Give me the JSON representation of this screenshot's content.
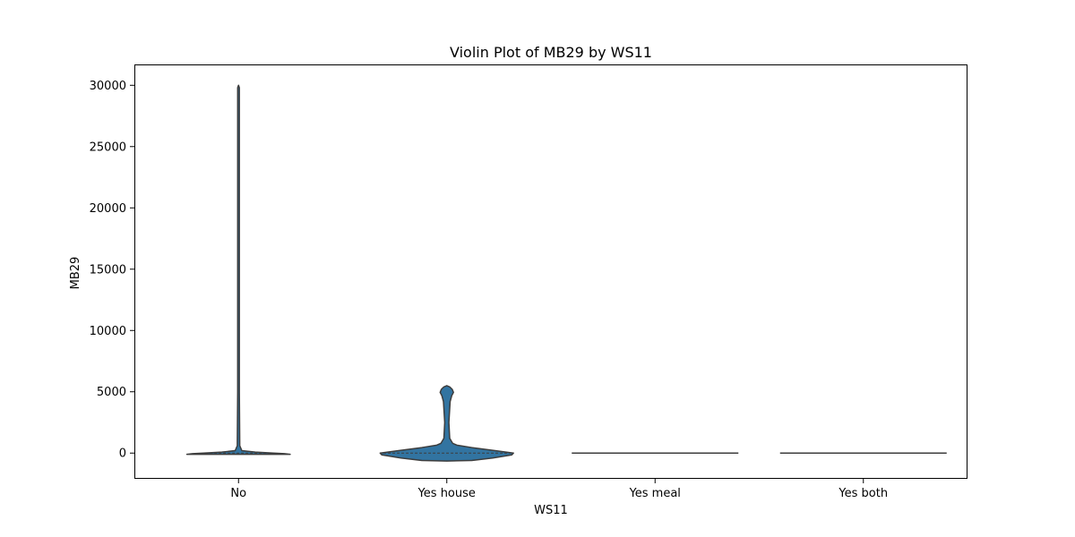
{
  "chart_data": {
    "type": "violin",
    "title": "Violin Plot of MB29 by WS11",
    "xlabel": "WS11",
    "ylabel": "MB29",
    "categories": [
      "No",
      "Yes house",
      "Yes meal",
      "Yes both"
    ],
    "ylim": [
      -2100,
      31700
    ],
    "yticks": [
      0,
      5000,
      10000,
      15000,
      20000,
      25000,
      30000
    ],
    "grid": false,
    "legend": "none",
    "fill_color": "#3274a1",
    "edge_color": "#3d3d3d",
    "violins": [
      {
        "category": "No",
        "range": [
          -100,
          30000
        ],
        "profile": [
          [
            -100,
            0.62
          ],
          [
            -50,
            0.55
          ],
          [
            0,
            0.42
          ],
          [
            80,
            0.2
          ],
          [
            200,
            0.04
          ],
          [
            600,
            0.015
          ],
          [
            5000,
            0.01
          ],
          [
            15000,
            0.01
          ],
          [
            29800,
            0.01
          ],
          [
            30000,
            0.0
          ]
        ]
      },
      {
        "category": "Yes house",
        "range": [
          -650,
          5500
        ],
        "profile": [
          [
            -650,
            0.0
          ],
          [
            -600,
            0.3
          ],
          [
            -400,
            0.55
          ],
          [
            -150,
            0.78
          ],
          [
            0,
            0.8
          ],
          [
            200,
            0.58
          ],
          [
            450,
            0.3
          ],
          [
            650,
            0.12
          ],
          [
            800,
            0.07
          ],
          [
            1200,
            0.035
          ],
          [
            2500,
            0.025
          ],
          [
            4200,
            0.04
          ],
          [
            4700,
            0.06
          ],
          [
            4950,
            0.08
          ],
          [
            5200,
            0.065
          ],
          [
            5400,
            0.035
          ],
          [
            5500,
            0.0
          ]
        ]
      },
      {
        "category": "Yes meal",
        "range": [
          0,
          0
        ],
        "profile": []
      },
      {
        "category": "Yes both",
        "range": [
          0,
          0
        ],
        "profile": []
      }
    ]
  }
}
